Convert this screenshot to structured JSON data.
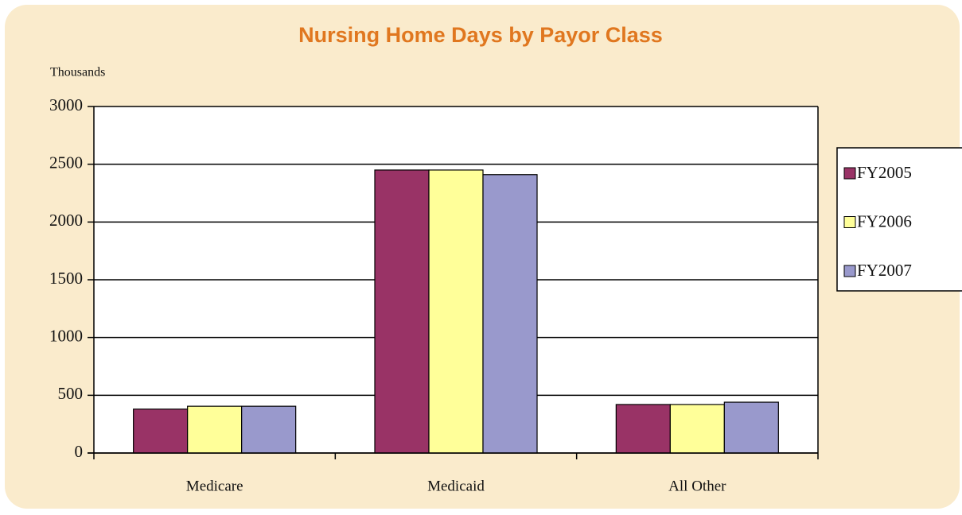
{
  "chart_data": {
    "type": "bar",
    "title": "Nursing Home Days by Payor Class",
    "y_label": "Thousands",
    "categories": [
      "Medicare",
      "Medicaid",
      "All Other"
    ],
    "series": [
      {
        "name": "FY2005",
        "color": "#993366",
        "values": [
          380,
          2450,
          420
        ]
      },
      {
        "name": "FY2006",
        "color": "#ffff99",
        "values": [
          405,
          2450,
          420
        ]
      },
      {
        "name": "FY2007",
        "color": "#9999cc",
        "values": [
          405,
          2410,
          440
        ]
      }
    ],
    "ylim": [
      0,
      3000
    ],
    "yticks": [
      0,
      500,
      1000,
      1500,
      2000,
      2500,
      3000
    ],
    "grid": true,
    "legend": "right"
  }
}
